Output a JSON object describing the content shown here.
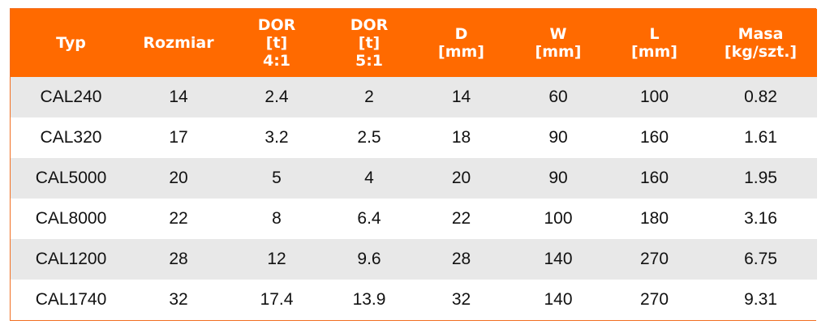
{
  "header": {
    "typ": [
      "Typ"
    ],
    "rozmiar": [
      "Rozmiar"
    ],
    "dor41": [
      "DOR",
      "[t]",
      "4:1"
    ],
    "dor51": [
      "DOR",
      "[t]",
      "5:1"
    ],
    "d": [
      "D",
      "[mm]"
    ],
    "w": [
      "W",
      "[mm]"
    ],
    "l": [
      "L",
      "[mm]"
    ],
    "masa": [
      "Masa",
      "[kg/szt.]"
    ]
  },
  "rows": [
    [
      "CAL240",
      "14",
      "2.4",
      "2",
      "14",
      "60",
      "100",
      "0.82"
    ],
    [
      "CAL320",
      "17",
      "3.2",
      "2.5",
      "18",
      "90",
      "160",
      "1.61"
    ],
    [
      "CAL5000",
      "20",
      "5",
      "4",
      "20",
      "90",
      "160",
      "1.95"
    ],
    [
      "CAL8000",
      "22",
      "8",
      "6.4",
      "22",
      "100",
      "180",
      "3.16"
    ],
    [
      "CAL1200",
      "28",
      "12",
      "9.6",
      "28",
      "140",
      "270",
      "6.75"
    ],
    [
      "CAL1740",
      "32",
      "17.4",
      "13.9",
      "32",
      "140",
      "270",
      "9.31"
    ]
  ],
  "colors": {
    "header_bg": "#ff6a00",
    "header_text": "#ffffff",
    "row_alt_bg": "#e8e8e8",
    "border": "#f26f21"
  }
}
